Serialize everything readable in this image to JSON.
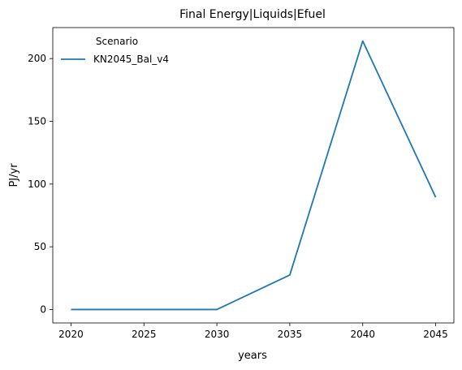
{
  "chart_data": {
    "type": "line",
    "title": "Final Energy|Liquids|Efuel",
    "xlabel": "years",
    "ylabel": "PJ/yr",
    "x": [
      2020,
      2025,
      2030,
      2035,
      2040,
      2045
    ],
    "xticks": [
      2020,
      2025,
      2030,
      2035,
      2040,
      2045
    ],
    "yticks": [
      0,
      50,
      100,
      150,
      200
    ],
    "xlim": [
      2018.75,
      2046.25
    ],
    "ylim": [
      -10.7,
      224.7
    ],
    "grid": false,
    "legend": {
      "title": "Scenario",
      "placement": "top-left"
    },
    "series": [
      {
        "name": "KN2045_Bal_v4",
        "color": "#1f77b4",
        "x": [
          2020,
          2030,
          2035,
          2040,
          2045
        ],
        "values": [
          0,
          0,
          27.5,
          214,
          89.5
        ]
      }
    ]
  }
}
